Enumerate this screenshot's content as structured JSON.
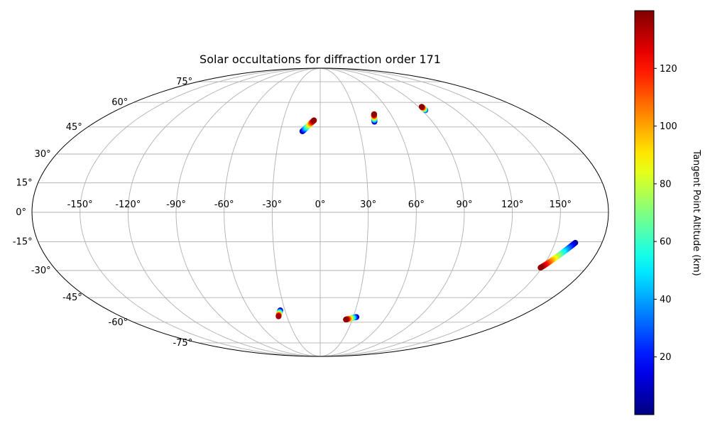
{
  "chart_data": {
    "type": "scatter",
    "projection": "mollweide",
    "title": "Solar occultations for diffraction order 171",
    "grid": true,
    "x_ticks": [
      "-150°",
      "-120°",
      "-90°",
      "-60°",
      "-30°",
      "0°",
      "30°",
      "60°",
      "90°",
      "120°",
      "150°"
    ],
    "x_tick_values": [
      -150,
      -120,
      -90,
      -60,
      -30,
      0,
      30,
      60,
      90,
      120,
      150
    ],
    "y_ticks": [
      "-75°",
      "-60°",
      "-45°",
      "-30°",
      "-15°",
      "0°",
      "15°",
      "30°",
      "45°",
      "60°",
      "75°"
    ],
    "y_tick_values": [
      -75,
      -60,
      -45,
      -30,
      -15,
      0,
      15,
      30,
      45,
      60,
      75
    ],
    "colorbar": {
      "label": "Tangent Point Altitude (km)",
      "range": [
        0,
        140
      ],
      "ticks": [
        "20",
        "40",
        "60",
        "80",
        "100",
        "120"
      ],
      "tick_values": [
        20,
        40,
        60,
        80,
        100,
        120
      ],
      "colormap": "jet"
    },
    "series": [
      {
        "points": [
          {
            "lon": -13.5,
            "lat": 42.5,
            "alt": 1
          },
          {
            "lon": -12.0,
            "lat": 43.6,
            "alt": 25
          },
          {
            "lon": -10.5,
            "lat": 44.8,
            "alt": 50
          },
          {
            "lon": -9.0,
            "lat": 46.0,
            "alt": 75
          },
          {
            "lon": -7.5,
            "lat": 47.1,
            "alt": 100
          },
          {
            "lon": -6.0,
            "lat": 48.2,
            "alt": 125
          },
          {
            "lon": -5.0,
            "lat": 48.9,
            "alt": 138
          }
        ]
      },
      {
        "points": [
          {
            "lon": 43.5,
            "lat": 48.0,
            "alt": 1
          },
          {
            "lon": 44.0,
            "lat": 49.0,
            "alt": 30
          },
          {
            "lon": 44.5,
            "lat": 50.0,
            "alt": 60
          },
          {
            "lon": 45.0,
            "lat": 51.0,
            "alt": 90
          },
          {
            "lon": 45.5,
            "lat": 52.0,
            "alt": 120
          },
          {
            "lon": 46.0,
            "lat": 52.6,
            "alt": 138
          }
        ]
      },
      {
        "points": [
          {
            "lon": 93.0,
            "lat": 55.0,
            "alt": 20
          },
          {
            "lon": 93.0,
            "lat": 55.7,
            "alt": 60
          },
          {
            "lon": 93.0,
            "lat": 56.5,
            "alt": 100
          },
          {
            "lon": 93.0,
            "lat": 57.2,
            "alt": 138
          }
        ]
      },
      {
        "points": [
          {
            "lon": 163.0,
            "lat": -15.5,
            "alt": 1
          },
          {
            "lon": 160.5,
            "lat": -17.8,
            "alt": 25
          },
          {
            "lon": 158.0,
            "lat": -20.2,
            "alt": 50
          },
          {
            "lon": 155.5,
            "lat": -22.6,
            "alt": 75
          },
          {
            "lon": 153.0,
            "lat": -25.0,
            "alt": 100
          },
          {
            "lon": 150.5,
            "lat": -27.3,
            "alt": 125
          },
          {
            "lon": 149.0,
            "lat": -28.5,
            "alt": 138
          }
        ]
      },
      {
        "points": [
          {
            "lon": -34.0,
            "lat": -52.5,
            "alt": 1
          },
          {
            "lon": -35.0,
            "lat": -53.5,
            "alt": 35
          },
          {
            "lon": -36.0,
            "lat": -54.5,
            "alt": 70
          },
          {
            "lon": -37.0,
            "lat": -55.5,
            "alt": 105
          },
          {
            "lon": -37.6,
            "lat": -56.3,
            "alt": 135
          }
        ]
      },
      {
        "points": [
          {
            "lon": 33.0,
            "lat": -56.7,
            "alt": 1
          },
          {
            "lon": 31.0,
            "lat": -57.0,
            "alt": 30
          },
          {
            "lon": 29.0,
            "lat": -57.3,
            "alt": 60
          },
          {
            "lon": 27.0,
            "lat": -57.7,
            "alt": 90
          },
          {
            "lon": 25.0,
            "lat": -58.1,
            "alt": 120
          },
          {
            "lon": 24.0,
            "lat": -58.3,
            "alt": 138
          }
        ]
      }
    ]
  }
}
